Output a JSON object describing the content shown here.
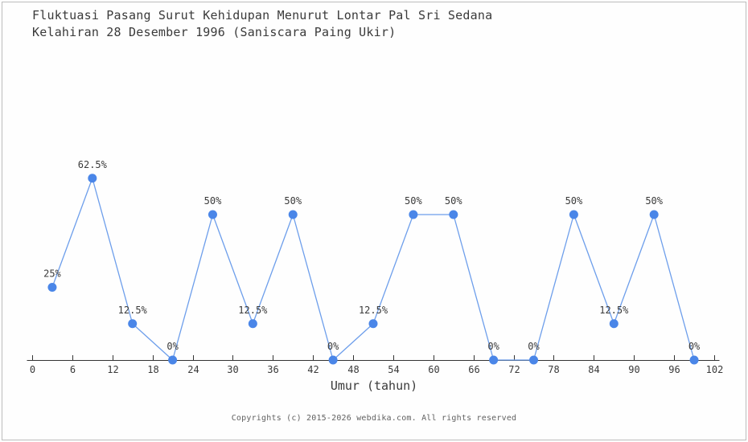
{
  "title": {
    "line1": "Fluktuasi Pasang Surut Kehidupan Menurut Lontar Pal Sri Sedana",
    "line2": "Kelahiran 28 Desember 1996 (Saniscara Paing Ukir)"
  },
  "chart_data": {
    "type": "line",
    "x": [
      3,
      9,
      15,
      21,
      27,
      33,
      39,
      45,
      51,
      57,
      63,
      69,
      75,
      81,
      87,
      93,
      99
    ],
    "values": [
      25,
      62.5,
      12.5,
      0,
      50,
      12.5,
      50,
      0,
      12.5,
      50,
      50,
      0,
      0,
      50,
      12.5,
      50,
      0
    ],
    "point_labels": [
      "25%",
      "62.5%",
      "12.5%",
      "0%",
      "50%",
      "12.5%",
      "50%",
      "0%",
      "12.5%",
      "50%",
      "50%",
      "0%",
      "0%",
      "50%",
      "12.5%",
      "50%",
      "0%"
    ],
    "x_ticks": [
      0,
      6,
      12,
      18,
      24,
      30,
      36,
      42,
      48,
      54,
      60,
      66,
      72,
      78,
      84,
      90,
      96,
      102
    ],
    "xlabel": "Umur (tahun)",
    "xlim": [
      0,
      102
    ],
    "ylim": [
      0,
      100
    ],
    "grid": false,
    "legend": "none",
    "colors": {
      "point": "#4a86e8",
      "line": "#6d9eeb",
      "axis": "#333333",
      "label_text": "#3a3a3a"
    }
  },
  "footer": {
    "copyright": "Copyrights (c) 2015-2026 webdika.com. All rights reserved"
  }
}
